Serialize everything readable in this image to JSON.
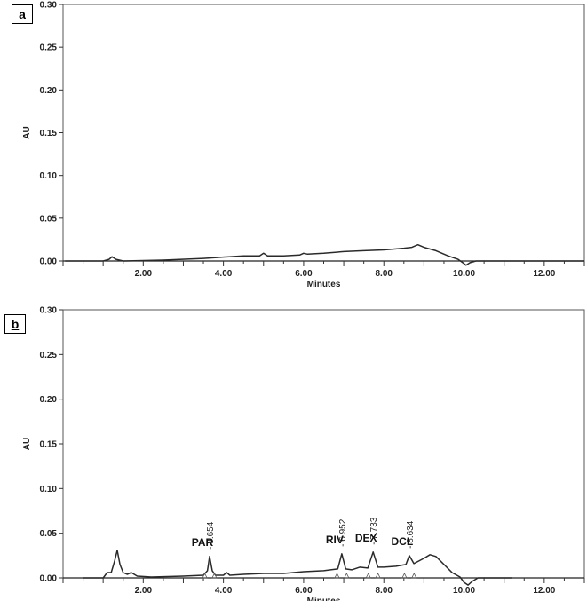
{
  "chart_data": [
    {
      "panel_label": "a",
      "type": "line",
      "xlabel": "Minutes",
      "ylabel": "AU",
      "xlim": [
        0,
        13
      ],
      "ylim": [
        0,
        0.3
      ],
      "x_ticks": [
        "2.00",
        "4.00",
        "6.00",
        "8.00",
        "10.00",
        "12.00"
      ],
      "y_ticks": [
        "0.00",
        "0.05",
        "0.10",
        "0.15",
        "0.20",
        "0.25",
        "0.30"
      ],
      "series": [
        {
          "x": [
            0.05,
            1.0,
            1.15,
            1.22,
            1.32,
            1.5,
            2.5,
            3.5,
            4.5,
            4.9,
            5.0,
            5.1,
            5.5,
            5.9,
            6.0,
            6.1,
            6.5,
            7.0,
            7.5,
            8.0,
            8.5,
            8.7,
            8.85,
            9.0,
            9.3,
            9.6,
            9.85,
            10.0,
            10.05,
            10.15,
            10.3,
            10.6,
            11.0,
            12.0,
            13.0
          ],
          "y": [
            0.0,
            0.0,
            0.002,
            0.005,
            0.002,
            0.0,
            0.001,
            0.003,
            0.006,
            0.006,
            0.009,
            0.006,
            0.006,
            0.007,
            0.009,
            0.008,
            0.009,
            0.011,
            0.012,
            0.013,
            0.015,
            0.016,
            0.019,
            0.016,
            0.012,
            0.006,
            0.002,
            -0.003,
            -0.005,
            -0.002,
            0.0,
            0.0,
            0.0,
            0.0,
            0.0
          ]
        }
      ],
      "peaks": []
    },
    {
      "panel_label": "b",
      "type": "line",
      "xlabel": "Minutes",
      "ylabel": "AU",
      "xlim": [
        0.0,
        13.0
      ],
      "ylim": [
        0,
        0.3
      ],
      "x_ticks": [
        "2.00",
        "4.00",
        "6.00",
        "8.00",
        "10.00",
        "12.00"
      ],
      "y_ticks": [
        "0.00",
        "0.05",
        "0.10",
        "0.15",
        "0.20",
        "0.25",
        "0.30"
      ],
      "series": [
        {
          "x": [
            0.5,
            1.0,
            1.1,
            1.2,
            1.28,
            1.35,
            1.42,
            1.5,
            1.6,
            1.7,
            1.85,
            2.2,
            3.0,
            3.5,
            3.6,
            3.654,
            3.72,
            3.8,
            4.0,
            4.08,
            4.16,
            4.5,
            5.0,
            5.5,
            6.0,
            6.5,
            6.85,
            6.952,
            7.05,
            7.2,
            7.4,
            7.6,
            7.733,
            7.85,
            8.0,
            8.3,
            8.55,
            8.634,
            8.75,
            9.0,
            9.15,
            9.3,
            9.5,
            9.7,
            9.9,
            10.0,
            10.1,
            10.2,
            10.35,
            10.6,
            11.0,
            11.2
          ],
          "y": [
            0.0,
            0.0,
            0.006,
            0.006,
            0.018,
            0.031,
            0.015,
            0.006,
            0.004,
            0.006,
            0.002,
            0.001,
            0.002,
            0.003,
            0.008,
            0.024,
            0.008,
            0.003,
            0.003,
            0.006,
            0.003,
            0.004,
            0.005,
            0.005,
            0.007,
            0.008,
            0.01,
            0.027,
            0.01,
            0.009,
            0.012,
            0.011,
            0.029,
            0.012,
            0.012,
            0.013,
            0.015,
            0.025,
            0.016,
            0.022,
            0.026,
            0.024,
            0.015,
            0.006,
            0.001,
            -0.005,
            -0.008,
            -0.004,
            0.0,
            0.0,
            0.0,
            0.0
          ]
        }
      ],
      "peaks": [
        {
          "label": "PAR",
          "rt": "3.654",
          "x": 3.654,
          "y": 0.024
        },
        {
          "label": "RIV",
          "rt": "6.952",
          "x": 6.952,
          "y": 0.027
        },
        {
          "label": "DEX",
          "rt": "7.733",
          "x": 7.733,
          "y": 0.029
        },
        {
          "label": "DCL",
          "rt": "8.634",
          "x": 8.634,
          "y": 0.025
        }
      ]
    }
  ]
}
